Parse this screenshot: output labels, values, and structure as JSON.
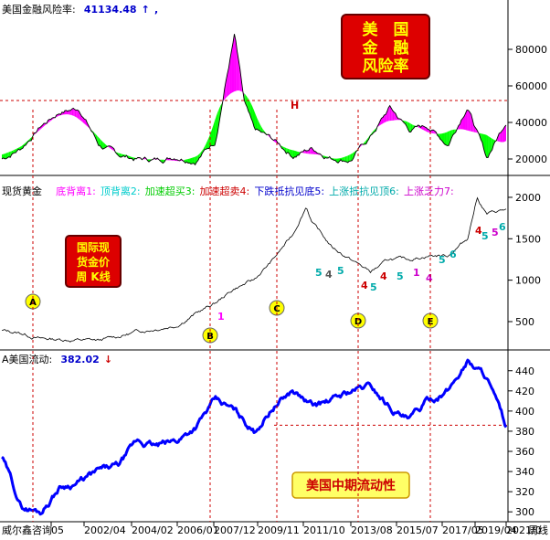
{
  "panels": {
    "risk": {
      "title": "美国金融风险率:",
      "value": "41134.48",
      "arrow": "↑",
      "value_color": "#0000cc",
      "badge_lines": [
        "美　国",
        "金　融",
        "风险率"
      ],
      "h_label": "H"
    },
    "gold": {
      "title": "现货黄金",
      "signals": [
        {
          "label": "底背离1:",
          "color": "#ff00ff"
        },
        {
          "label": "顶背离2:",
          "color": "#00cccc"
        },
        {
          "label": "加速超买3:",
          "color": "#00cc00"
        },
        {
          "label": "加速超卖4:",
          "color": "#cc0000"
        },
        {
          "label": "下跌抵抗见底5:",
          "color": "#0000cc"
        },
        {
          "label": "上涨抵抗见顶6:",
          "color": "#00aaaa"
        },
        {
          "label": "上涨乏力7:",
          "color": "#cc00cc"
        }
      ],
      "badge_lines": [
        "国际现",
        "货金价",
        "周 K线"
      ],
      "markers": [
        "A",
        "B",
        "C",
        "D",
        "E"
      ]
    },
    "liquidity": {
      "title": "A美国流动:",
      "value": "382.02",
      "arrow": "↓",
      "value_color": "#0000cc",
      "badge": "美国中期流动性"
    }
  },
  "footer": {
    "source": "威尔鑫咨询",
    "period": "周线"
  },
  "colors": {
    "rise_fill": "#ff00ff",
    "fall_fill": "#00ff00",
    "liquidity_line": "#0000ff",
    "guide": "#cc0000",
    "badge_bg": "#dd0000",
    "label_badge_bg": "#ffff66"
  },
  "chart_data": [
    {
      "type": "area",
      "series": [],
      "x": [
        1996,
        1997,
        1998,
        1999,
        2000,
        2001,
        2002,
        2003,
        2004,
        2005,
        2006,
        2007,
        2007.5,
        2008,
        2008.5,
        2009,
        2010,
        2011,
        2012,
        2013,
        2014,
        2015,
        2016,
        2017,
        2018,
        2019,
        2020,
        2021,
        2022
      ],
      "values": [
        20000,
        26000,
        38000,
        46000,
        48000,
        28000,
        22000,
        20000,
        19500,
        22000,
        20000,
        30000,
        60000,
        88000,
        50000,
        35000,
        30000,
        22000,
        26000,
        21000,
        20000,
        32000,
        48000,
        36000,
        38000,
        28000,
        50000,
        20000,
        41134
      ],
      "yticks": [
        20000,
        40000,
        60000,
        80000
      ],
      "ylim": [
        12000,
        98000
      ],
      "reference_line": {
        "label": "H",
        "value": 52000
      }
    },
    {
      "type": "line",
      "series": [],
      "x": [
        1996,
        1997,
        1998,
        1999,
        2000,
        2001,
        2002,
        2003,
        2004,
        2005,
        2006,
        2007,
        2008,
        2009,
        2010,
        2011,
        2011.7,
        2012,
        2013,
        2014,
        2015,
        2016,
        2017,
        2018,
        2019,
        2020,
        2020.5,
        2021,
        2022
      ],
      "values": [
        390,
        360,
        295,
        285,
        280,
        270,
        320,
        380,
        420,
        460,
        600,
        720,
        900,
        1000,
        1250,
        1550,
        1900,
        1700,
        1400,
        1250,
        1100,
        1250,
        1250,
        1300,
        1300,
        1500,
        2000,
        1800,
        1850
      ],
      "yticks": [
        500,
        1000,
        1500,
        2000
      ],
      "ylim": [
        180,
        2220
      ]
    },
    {
      "type": "line",
      "series": [],
      "x": [
        1996,
        1997,
        1998,
        1999,
        2000,
        2001,
        2002,
        2003,
        2004,
        2005,
        2006,
        2007,
        2008,
        2009,
        2010,
        2011,
        2012,
        2013,
        2014,
        2015,
        2016,
        2017,
        2018,
        2019,
        2020,
        2021,
        2022
      ],
      "values": [
        355,
        305,
        300,
        325,
        330,
        340,
        345,
        370,
        365,
        370,
        385,
        410,
        400,
        380,
        405,
        420,
        405,
        410,
        420,
        425,
        405,
        390,
        410,
        420,
        450,
        435,
        382
      ],
      "yticks": [
        300,
        320,
        340,
        360,
        380,
        400,
        420,
        440
      ],
      "ylim": [
        292,
        457
      ],
      "reference_line": {
        "value": 386
      }
    }
  ],
  "x_axis": {
    "ticks": [
      "05",
      "2002/04",
      "2004/02",
      "2006/01",
      "2007/12",
      "2009/11",
      "2011/10",
      "2013/08",
      "2015/07",
      "2017/05",
      "2019/04",
      "2021/0"
    ]
  }
}
